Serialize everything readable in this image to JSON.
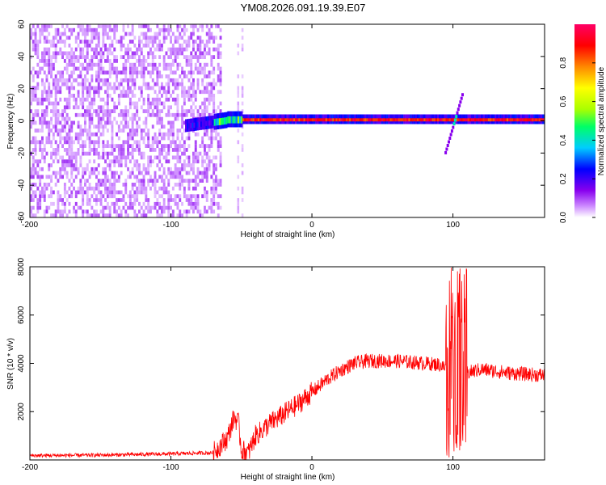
{
  "title": "YM08.2026.091.19.39.E07",
  "chart_data": [
    {
      "type": "heatmap",
      "name": "spectrogram",
      "xlabel": "Height of straight line (km)",
      "ylabel": "Frequency (Hz)",
      "xlim": [
        -200,
        165
      ],
      "ylim": [
        -60,
        60
      ],
      "xticks": [
        -200,
        -100,
        0,
        100
      ],
      "yticks": [
        60,
        40,
        20,
        0,
        -20,
        -40,
        -60
      ],
      "ytick_labels": [
        "60",
        "40",
        "20",
        "0",
        "-20",
        "-40",
        "-60"
      ],
      "colorbar": {
        "label": "Normalized spectral amplitude",
        "range": [
          0,
          1
        ],
        "ticks": [
          0.0,
          0.2,
          0.4,
          0.6,
          0.8
        ],
        "tick_labels": [
          "0.0",
          "0.2",
          "0.4",
          "0.6",
          "0.8"
        ],
        "colormap": [
          "#ffffff",
          "#cc88ff",
          "#8800ee",
          "#0000ff",
          "#00ccff",
          "#00ff66",
          "#aaff00",
          "#ffff00",
          "#ff8800",
          "#ff0000",
          "#ff0066"
        ]
      },
      "features": {
        "noise_region_km": [
          -200,
          -65
        ],
        "isolated_noise_columns_km": [
          -53,
          -50
        ],
        "carrier_frequency_hz": 1,
        "carrier_start_km": -90,
        "strong_region_km": [
          -50,
          165
        ],
        "transient_km": 100,
        "transient_freq_range_hz": [
          -20,
          16
        ]
      }
    },
    {
      "type": "line",
      "name": "snr",
      "xlabel": "Height of straight line (km)",
      "ylabel": "SNR (10 * v/v)",
      "xlim": [
        -200,
        165
      ],
      "ylim": [
        0,
        8000
      ],
      "xticks": [
        -200,
        -100,
        0,
        100
      ],
      "yticks": [
        2000,
        4000,
        6000,
        8000
      ],
      "color": "#ff0000",
      "series": [
        {
          "name": "SNR",
          "x": [
            -200,
            -150,
            -100,
            -70,
            -60,
            -55,
            -52,
            -50,
            -45,
            -40,
            -30,
            -20,
            -10,
            0,
            10,
            20,
            30,
            40,
            50,
            60,
            70,
            80,
            90,
            95,
            100,
            105,
            110,
            120,
            140,
            165
          ],
          "values": [
            180,
            200,
            250,
            300,
            900,
            1800,
            1500,
            400,
            300,
            1000,
            1500,
            1900,
            2300,
            2800,
            3300,
            3700,
            4000,
            4100,
            4100,
            4100,
            4050,
            4000,
            3950,
            3800,
            3900,
            3800,
            3600,
            3750,
            3600,
            3500
          ]
        }
      ],
      "transient": {
        "x_range_km": [
          95,
          110
        ],
        "min": 50,
        "max": 8000
      }
    }
  ]
}
